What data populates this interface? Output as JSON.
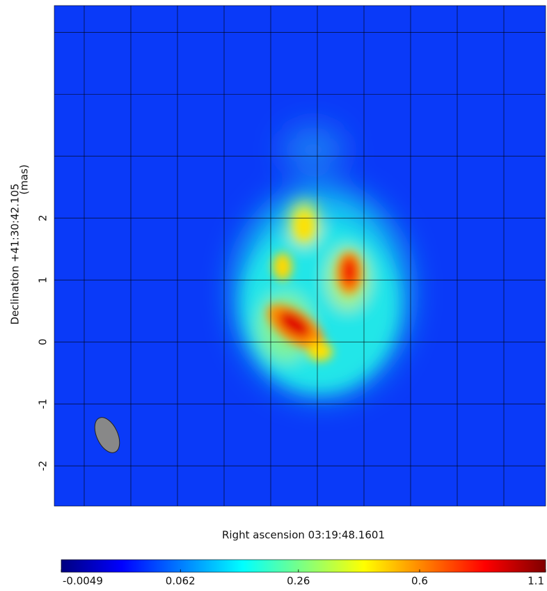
{
  "chart_data": {
    "type": "image",
    "xlabel": "Right ascension  03:19:48.1601",
    "ylabel": "Declination  +41:30:42.105",
    "yunit": "(mas)",
    "ylim": [
      -2.65,
      5.43
    ],
    "yticks": [
      -2,
      -1,
      0,
      1,
      2
    ],
    "ygrid": [
      -2,
      -1,
      0,
      1,
      2,
      3,
      4,
      5
    ],
    "grid": true,
    "colormap": "jet",
    "colorbar": {
      "lim": [
        -0.0049,
        1.1
      ],
      "scale": "sqrt",
      "ticks": [
        -0.0049,
        0.062,
        0.26,
        0.6,
        1.1
      ]
    }
  }
}
